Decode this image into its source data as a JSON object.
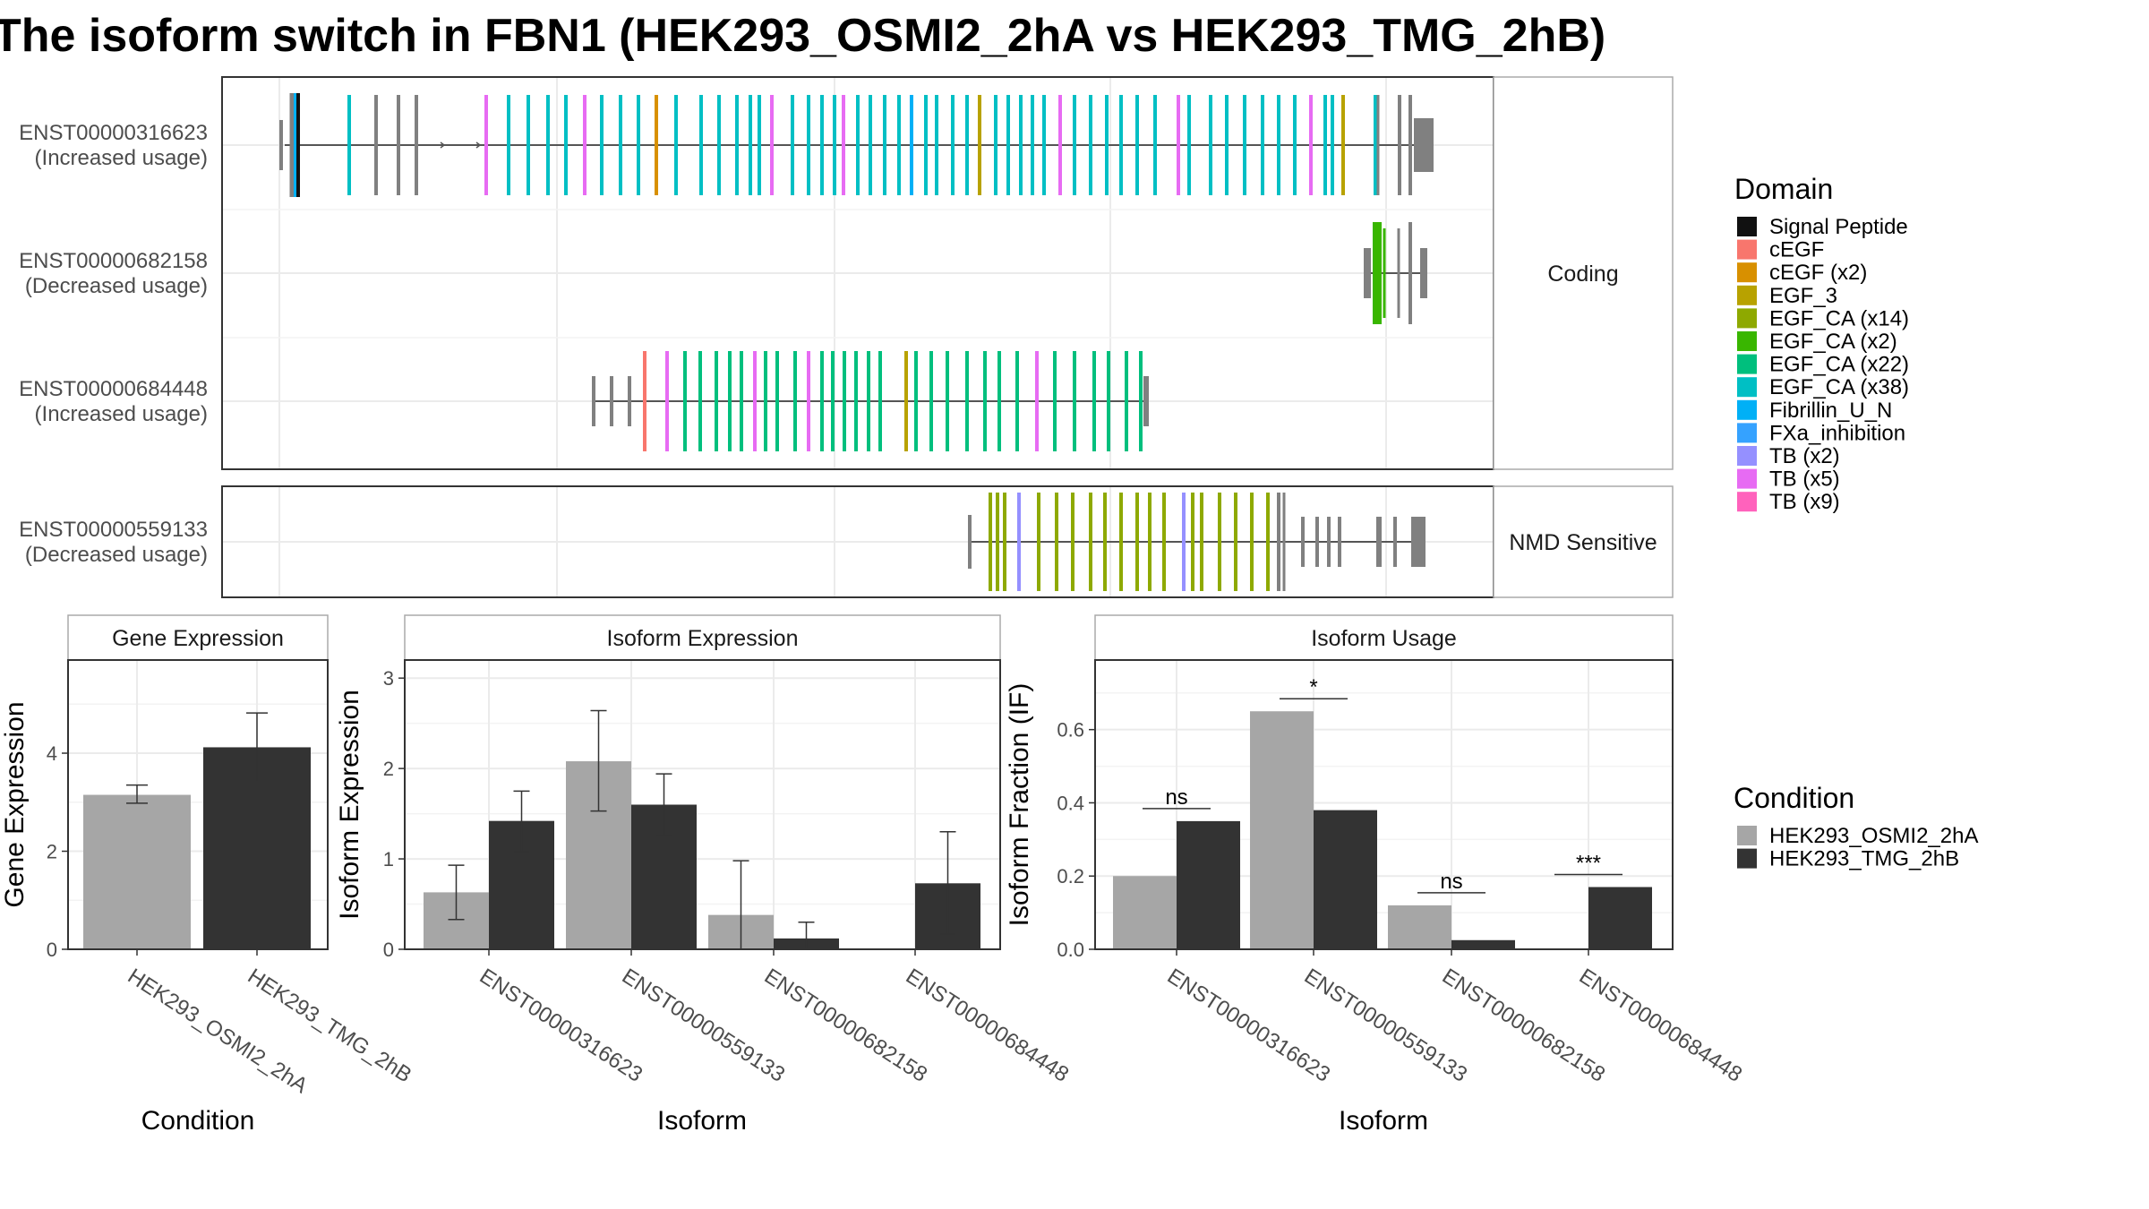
{
  "title": "The isoform switch in FBN1 (HEK293_OSMI2_2hA vs HEK293_TMG_2hB)",
  "colors": {
    "cond_a": "#a6a6a6",
    "cond_b": "#333333"
  },
  "structure": {
    "panels": [
      {
        "label": "Coding",
        "isoforms": [
          {
            "id": "ENST00000316623",
            "note": "(Increased usage)"
          },
          {
            "id": "ENST00000682158",
            "note": "(Decreased usage)"
          },
          {
            "id": "ENST00000684448",
            "note": "(Increased usage)"
          }
        ]
      },
      {
        "label": "NMD Sensitive",
        "isoforms": [
          {
            "id": "ENST00000559133",
            "note": "(Decreased usage)"
          }
        ]
      }
    ]
  },
  "legend_domain": {
    "title": "Domain",
    "items": [
      {
        "label": "Signal Peptide",
        "color": "#111111"
      },
      {
        "label": "cEGF",
        "color": "#f8766d"
      },
      {
        "label": "cEGF (x2)",
        "color": "#d89000"
      },
      {
        "label": "EGF_3",
        "color": "#b8a200"
      },
      {
        "label": "EGF_CA (x14)",
        "color": "#8ea900"
      },
      {
        "label": "EGF_CA (x2)",
        "color": "#39b600"
      },
      {
        "label": "EGF_CA (x22)",
        "color": "#00bf7d"
      },
      {
        "label": "EGF_CA (x38)",
        "color": "#00bfc4"
      },
      {
        "label": "Fibrillin_U_N",
        "color": "#00b0f6"
      },
      {
        "label": "FXa_inhibition",
        "color": "#35a2ff"
      },
      {
        "label": "TB (x2)",
        "color": "#9590ff"
      },
      {
        "label": "TB (x5)",
        "color": "#e76bf3"
      },
      {
        "label": "TB (x9)",
        "color": "#ff62bc"
      }
    ]
  },
  "legend_condition": {
    "title": "Condition",
    "items": [
      {
        "label": "HEK293_OSMI2_2hA",
        "color": "#a6a6a6"
      },
      {
        "label": "HEK293_TMG_2hB",
        "color": "#333333"
      }
    ]
  },
  "chart_data": [
    {
      "type": "bar",
      "strip": "Gene Expression",
      "xlabel": "Condition",
      "ylabel": "Gene Expression",
      "ylim": [
        0,
        5.9
      ],
      "yticks": [
        0,
        2,
        4
      ],
      "categories": [
        "HEK293_OSMI2_2hA",
        "HEK293_TMG_2hB"
      ],
      "values": [
        3.15,
        4.12
      ],
      "err_low": [
        2.98,
        3.42
      ],
      "err_high": [
        3.35,
        4.82
      ]
    },
    {
      "type": "bar",
      "strip": "Isoform Expression",
      "xlabel": "Isoform",
      "ylabel": "Isoform Expression",
      "ylim": [
        0,
        3.2
      ],
      "yticks": [
        0,
        1,
        2,
        3
      ],
      "categories": [
        "ENST00000316623",
        "ENST00000559133",
        "ENST00000682158",
        "ENST00000684448"
      ],
      "series": [
        {
          "name": "HEK293_OSMI2_2hA",
          "values": [
            0.63,
            2.08,
            0.38,
            0.0
          ],
          "err_low": [
            0.33,
            1.53,
            0.0,
            0.0
          ],
          "err_high": [
            0.93,
            2.64,
            0.98,
            0.0
          ]
        },
        {
          "name": "HEK293_TMG_2hB",
          "values": [
            1.42,
            1.6,
            0.12,
            0.73
          ],
          "err_low": [
            1.08,
            1.26,
            0.0,
            0.17
          ],
          "err_high": [
            1.75,
            1.94,
            0.3,
            1.3
          ]
        }
      ]
    },
    {
      "type": "bar",
      "strip": "Isoform Usage",
      "xlabel": "Isoform",
      "ylabel": "Isoform Fraction (IF)",
      "ylim": [
        0,
        0.79
      ],
      "yticks": [
        0.0,
        0.2,
        0.4,
        0.6
      ],
      "categories": [
        "ENST00000316623",
        "ENST00000559133",
        "ENST00000682158",
        "ENST00000684448"
      ],
      "series": [
        {
          "name": "HEK293_OSMI2_2hA",
          "values": [
            0.2,
            0.65,
            0.12,
            0.0
          ]
        },
        {
          "name": "HEK293_TMG_2hB",
          "values": [
            0.35,
            0.38,
            0.025,
            0.17
          ]
        }
      ],
      "significance": [
        "ns",
        "*",
        "ns",
        "***"
      ]
    }
  ]
}
